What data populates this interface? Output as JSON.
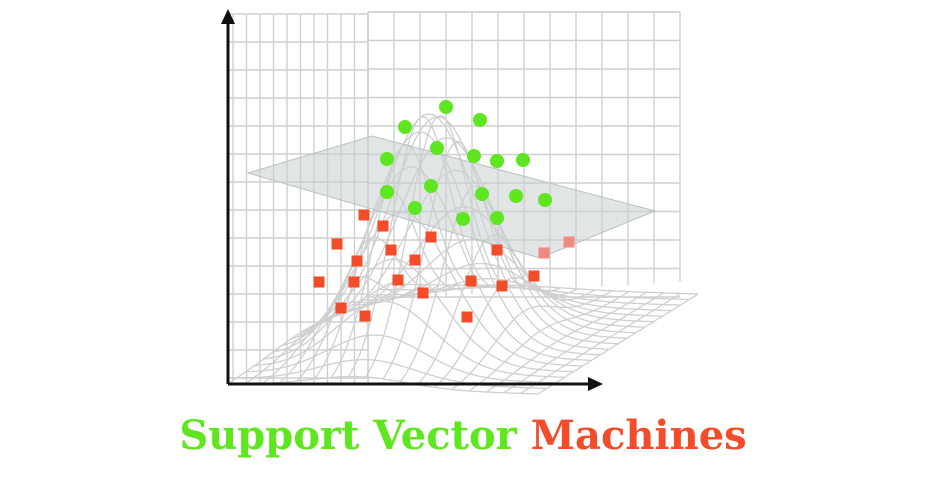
{
  "title": {
    "part1": "Support Vector",
    "part2": "Machines"
  },
  "colors": {
    "class_a": "#5ee61e",
    "class_b": "#f24c2a",
    "class_b_faded": "#f08a80",
    "grid": "#cfcfcf",
    "plane": "#c8cfcf",
    "axis": "#111111"
  },
  "icons": {
    "class_a_marker": "circle",
    "class_b_marker": "square"
  }
}
